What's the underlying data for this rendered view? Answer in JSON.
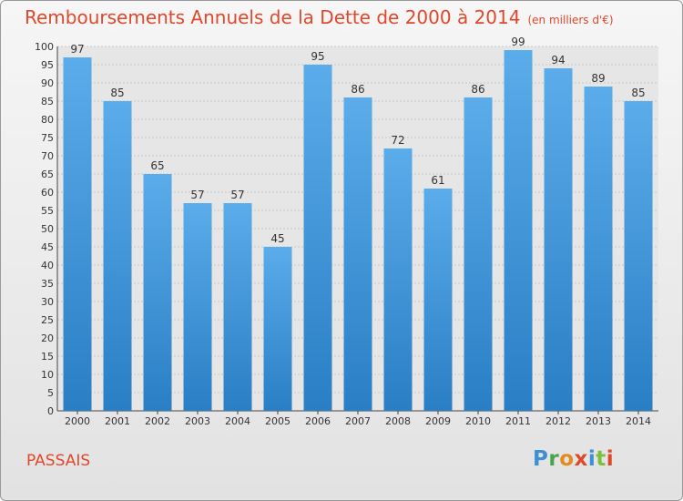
{
  "title": "Remboursements Annuels de la Dette de 2000 à 2014",
  "unit_note": "(en milliers d'€)",
  "commune": "PASSAIS",
  "logo": {
    "letters": [
      "P",
      "r",
      "o",
      "x",
      "i",
      "t",
      "i"
    ]
  },
  "colors": {
    "title": "#e0482b",
    "bar_top": "#5aacea",
    "bar_bottom": "#2a7ec4"
  },
  "chart_data": {
    "type": "bar",
    "title": "Remboursements Annuels de la Dette de 2000 à 2014",
    "categories": [
      "2000",
      "2001",
      "2002",
      "2003",
      "2004",
      "2005",
      "2006",
      "2007",
      "2008",
      "2009",
      "2010",
      "2011",
      "2012",
      "2013",
      "2014"
    ],
    "values": [
      97,
      85,
      65,
      57,
      57,
      45,
      95,
      86,
      72,
      61,
      86,
      99,
      94,
      89,
      85
    ],
    "ylim": [
      0,
      100
    ],
    "yticks": [
      0,
      5,
      10,
      15,
      20,
      25,
      30,
      35,
      40,
      45,
      50,
      55,
      60,
      65,
      70,
      75,
      80,
      85,
      90,
      95,
      100
    ],
    "grid": true,
    "xlabel": "",
    "ylabel": ""
  }
}
